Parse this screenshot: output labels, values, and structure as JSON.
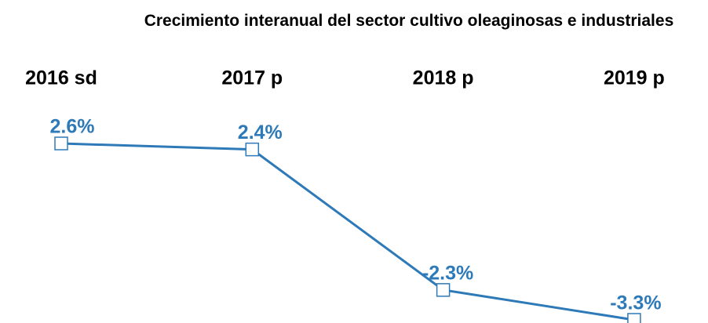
{
  "chart_data": {
    "type": "line",
    "title": "Crecimiento interanual del sector cultivo oleaginosas e industriales",
    "categories": [
      "2016 sd",
      "2017 p",
      "2018 p",
      "2019 p"
    ],
    "series": [
      {
        "color": "#2e7ab8",
        "values": [
          2.6,
          2.4,
          -2.3,
          -3.3
        ],
        "value_labels": [
          "2.6%",
          "2.4%",
          "-2.3%",
          "-3.3%"
        ]
      }
    ]
  }
}
